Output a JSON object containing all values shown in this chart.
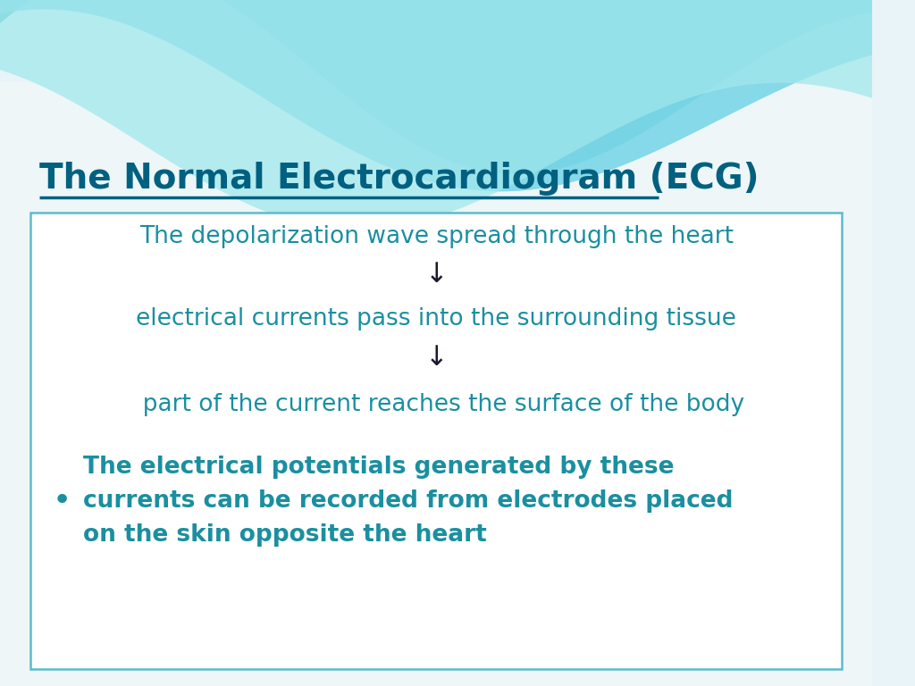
{
  "title": "The Normal Electrocardiogram (ECG)",
  "title_color": "#006080",
  "title_fontsize": 28,
  "bg_color": "#f0f4f8",
  "box_color": "#5bbccc",
  "line1": "The depolarization wave spread through the heart",
  "arrow1": "↓",
  "line2": "electrical currents pass into the surrounding tissue",
  "arrow2": "↓",
  "line3": "  part of the current reaches the surface of the body",
  "bullet_text": "The electrical potentials generated by these\ncurrents can be recorded from electrodes placed\non the skin opposite the heart",
  "text_color_teal": "#1a8fa0",
  "text_color_dark": "#1a1a2e",
  "arrow_color": "#1a1a2e",
  "bullet_color": "#1a8fa0",
  "wave_color1": "#5bbccc",
  "wave_color2": "#7dcfcf",
  "wave_color3": "#a8e0e0"
}
